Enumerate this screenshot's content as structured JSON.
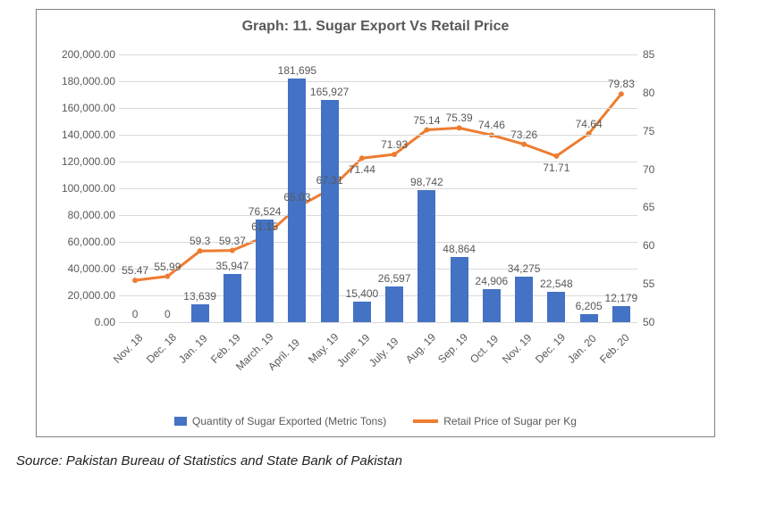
{
  "chart": {
    "type": "combo-bar-line",
    "title": "Graph: 11. Sugar Export Vs Retail Price",
    "background_color": "#ffffff",
    "border_color": "#808080",
    "grid_color": "#d9d9d9",
    "title_fontsize": 16,
    "label_fontsize": 12,
    "categories": [
      "Nov. 18",
      "Dec. 18",
      "Jan. 19",
      "Feb. 19",
      "March. 19",
      "April. 19",
      "May. 19",
      "June. 19",
      "July. 19",
      "Aug. 19",
      "Sep. 19",
      "Oct. 19",
      "Nov. 19",
      "Dec. 19",
      "Jan. 20",
      "Feb. 20"
    ],
    "series_bar": {
      "name": "Quantity of Sugar Exported (Metric Tons)",
      "color": "#4472c4",
      "values": [
        0,
        0,
        13639,
        35947,
        76524,
        181695,
        165927,
        15400,
        26597,
        98742,
        48864,
        24906,
        34275,
        22548,
        6205,
        12179
      ],
      "data_labels": [
        "0",
        "0",
        "13,639",
        "35,947",
        "76,524",
        "181,695",
        "165,927",
        "15,400",
        "26,597",
        "98,742",
        "48,864",
        "24,906",
        "34,275",
        "22,548",
        "6,205",
        "12,179"
      ]
    },
    "series_line": {
      "name": "Retail Price of Sugar per Kg",
      "color": "#ed7d31",
      "line_width": 3,
      "marker_radius": 3,
      "values": [
        55.47,
        55.99,
        59.3,
        59.37,
        61.15,
        65.03,
        67.31,
        71.44,
        71.93,
        75.14,
        75.39,
        74.46,
        73.26,
        71.71,
        74.64,
        79.83
      ],
      "data_labels": [
        "55.47",
        "55.99",
        "59.3",
        "59.37",
        "61.15",
        "65.03",
        "67.31",
        "71.44",
        "71.93",
        "75.14",
        "75.39",
        "74.46",
        "73.26",
        "71.71",
        "74.64",
        "79.83"
      ]
    },
    "y_left": {
      "min": 0,
      "max": 200000,
      "step": 20000,
      "tick_labels": [
        "0.00",
        "20,000.00",
        "40,000.00",
        "60,000.00",
        "80,000.00",
        "100,000.00",
        "120,000.00",
        "140,000.00",
        "160,000.00",
        "180,000.00",
        "200,000.00"
      ]
    },
    "y_right": {
      "min": 50,
      "max": 85,
      "step": 5,
      "tick_labels": [
        "50",
        "55",
        "60",
        "65",
        "70",
        "75",
        "80",
        "85"
      ]
    },
    "bar_width_ratio": 0.55
  },
  "source": "Source: Pakistan Bureau of Statistics and State Bank of Pakistan"
}
